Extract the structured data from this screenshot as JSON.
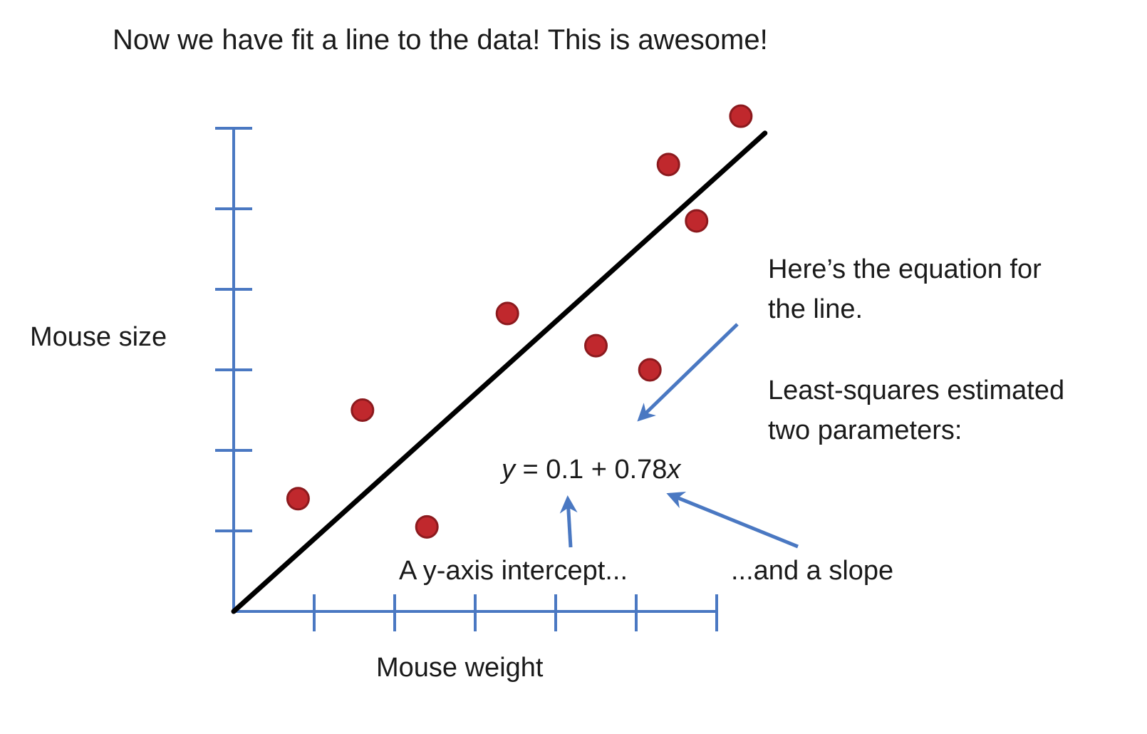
{
  "slide": {
    "title": "Now we have fit a line to the data! This is awesome!",
    "annotations": {
      "equation_note_line1": "Here’s the equation for",
      "equation_note_line2": "the line.",
      "params_note_line1": "Least-squares estimated",
      "params_note_line2": "two parameters:",
      "intercept_label": "A y-axis intercept...",
      "slope_label": "...and a slope"
    },
    "equation": {
      "lhs_var": "y",
      "middle": " = 0.1 + 0.78",
      "rhs_var": "x"
    },
    "colors": {
      "axis": "#4a78c2",
      "point": "#c0282d",
      "point_edge": "#8c1a1e",
      "fit_line": "#000000",
      "arrow": "#4a78c2"
    }
  },
  "chart_data": {
    "type": "scatter",
    "xlabel": "Mouse weight",
    "ylabel": "Mouse size",
    "x_ticks": 6,
    "y_ticks": 6,
    "xlim": [
      0,
      6
    ],
    "ylim": [
      0,
      6
    ],
    "series": [
      {
        "points": [
          {
            "x": 0.8,
            "y": 1.4
          },
          {
            "x": 1.6,
            "y": 2.5
          },
          {
            "x": 2.4,
            "y": 1.05
          },
          {
            "x": 3.4,
            "y": 3.7
          },
          {
            "x": 4.5,
            "y": 3.3
          },
          {
            "x": 5.17,
            "y": 3.0
          },
          {
            "x": 5.4,
            "y": 5.55
          },
          {
            "x": 5.75,
            "y": 4.85
          },
          {
            "x": 6.3,
            "y": 6.15
          }
        ]
      }
    ],
    "fit_line": {
      "intercept": 0.1,
      "slope": 0.78,
      "from_x": 0,
      "to_x": 6.6
    },
    "grid": false
  }
}
